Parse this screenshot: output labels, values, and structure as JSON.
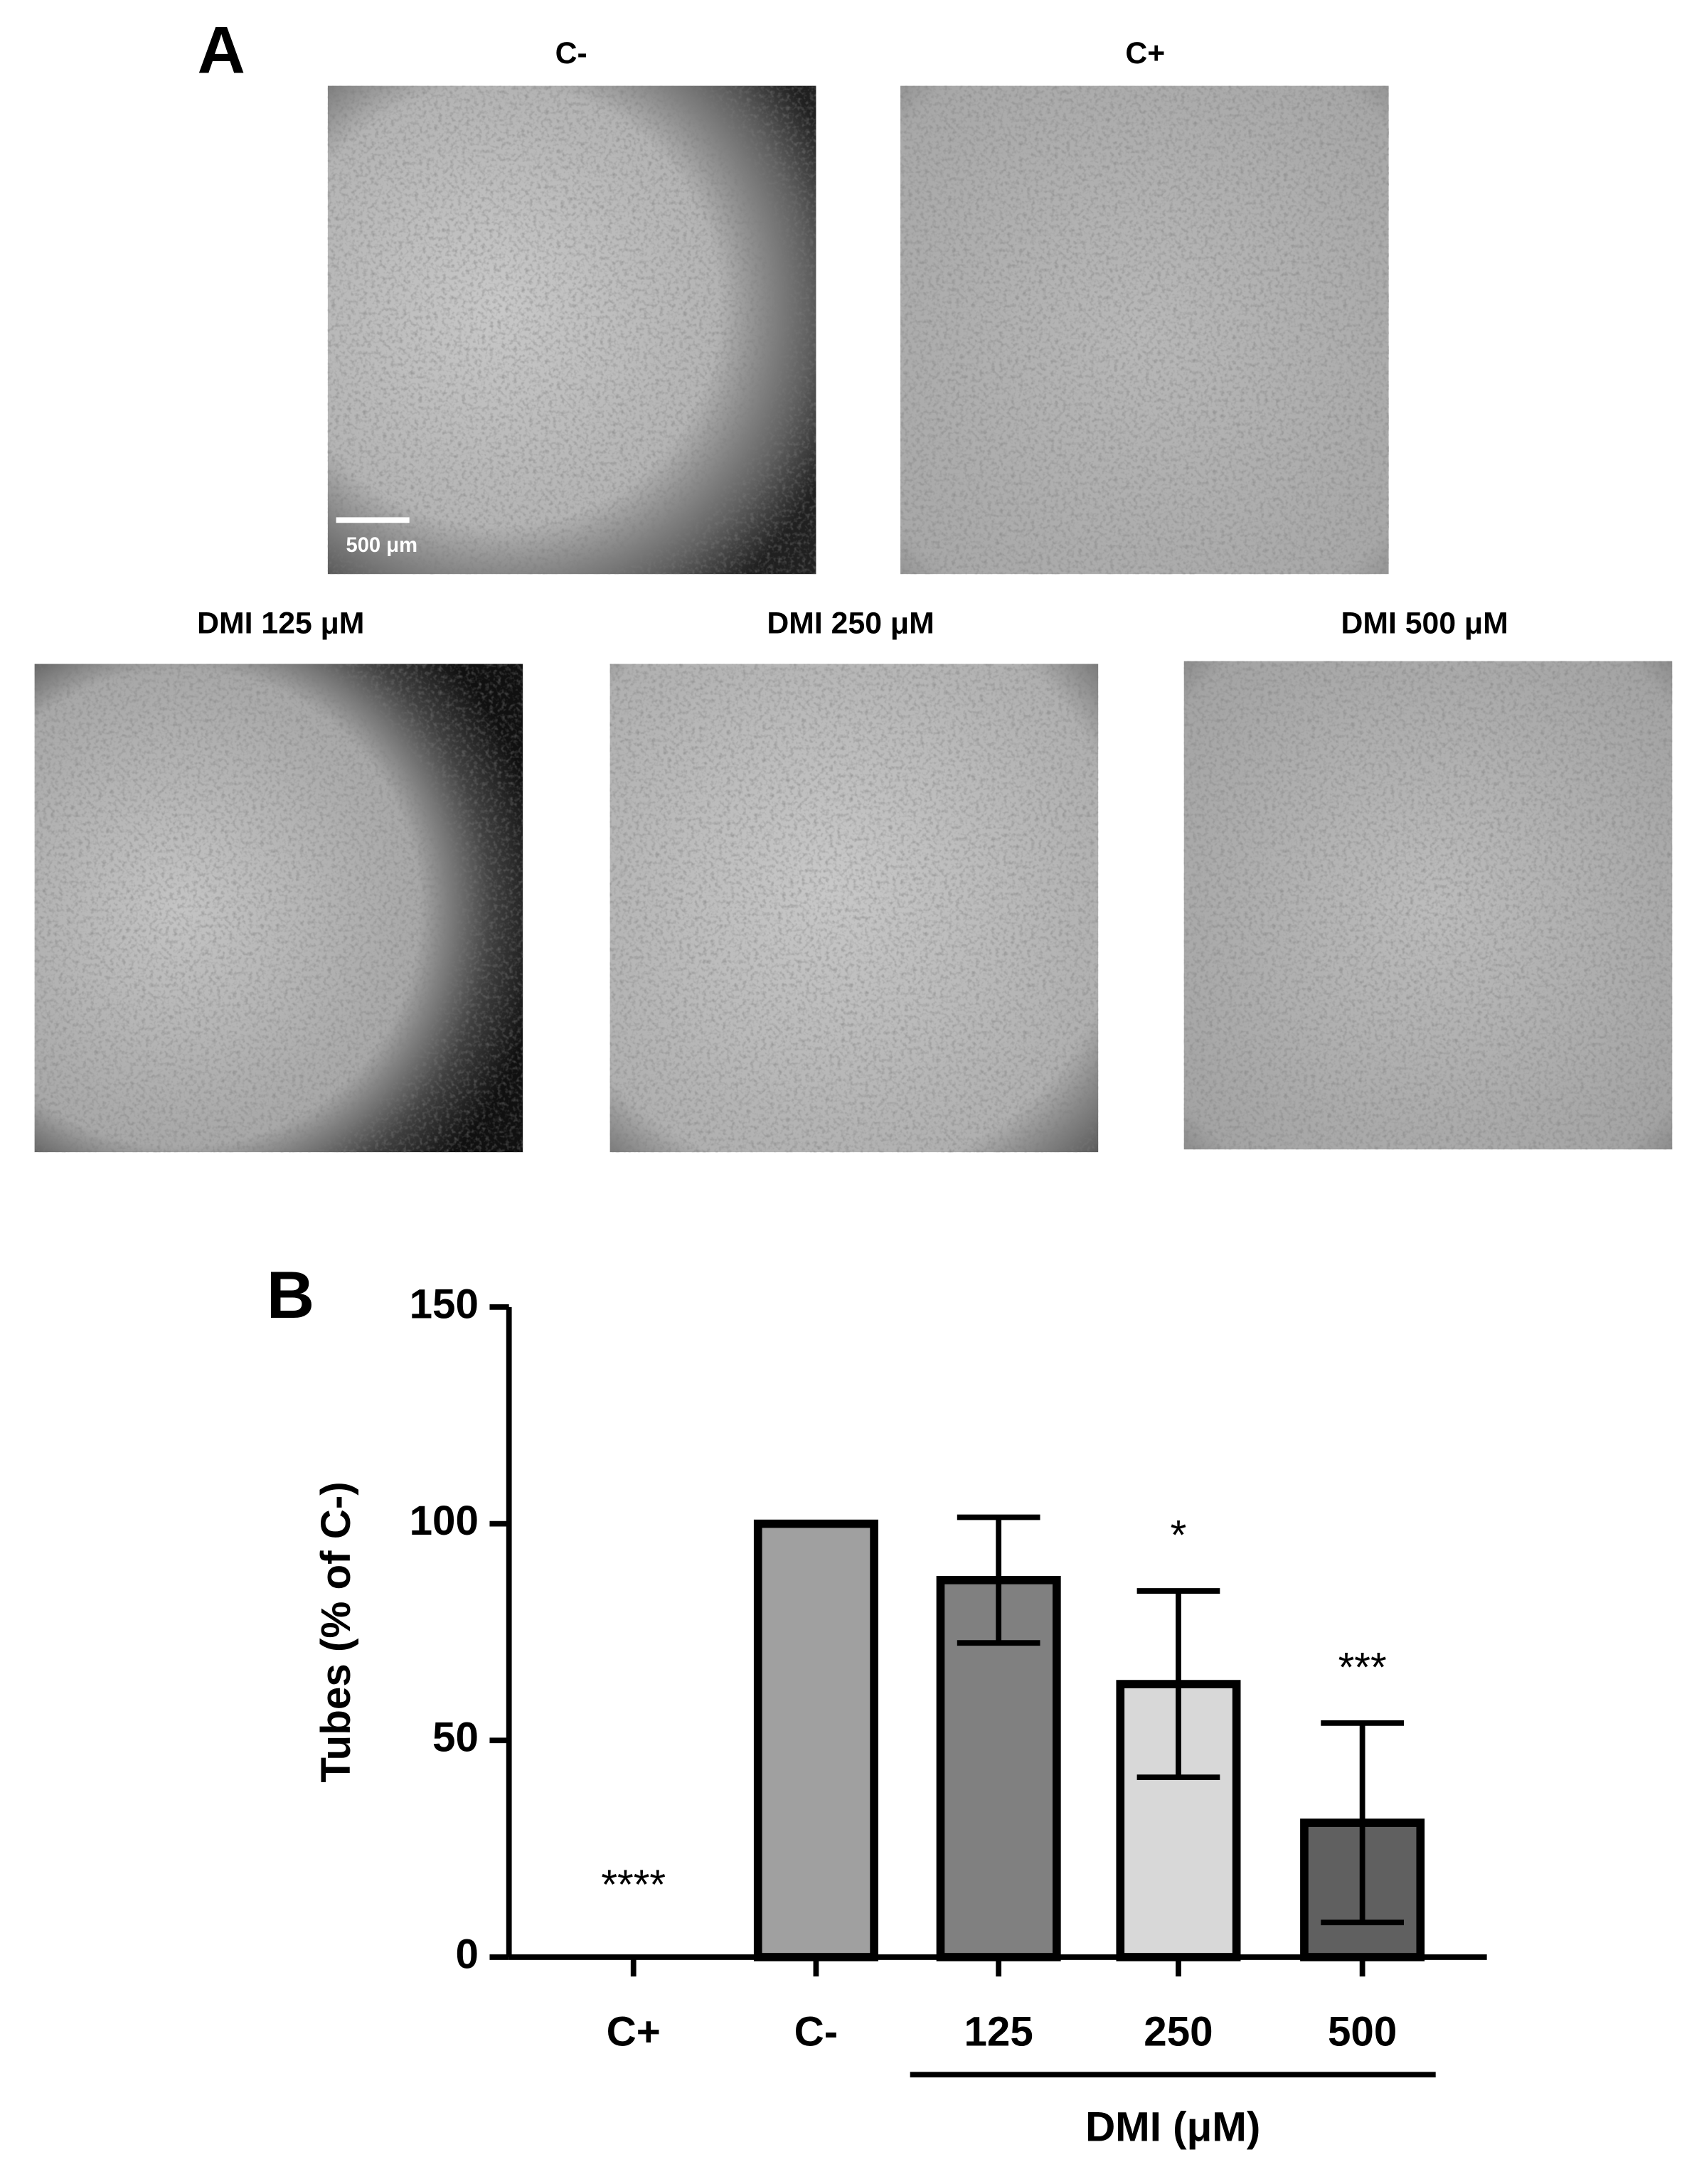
{
  "panel_a": {
    "label": "A",
    "images": [
      {
        "title": "C-"
      },
      {
        "title": "C+"
      },
      {
        "title": "DMI 125 μM"
      },
      {
        "title": "DMI 250 μM"
      },
      {
        "title": "DMI 500 μM"
      }
    ],
    "scale_bar": "500 μm"
  },
  "panel_b": {
    "label": "B"
  },
  "chart_data": {
    "type": "bar",
    "categories": [
      "C+",
      "C-",
      "125",
      "250",
      "500"
    ],
    "values": [
      0,
      100,
      87,
      63,
      31
    ],
    "errors": [
      null,
      null,
      14.5,
      21.5,
      23
    ],
    "colors": [
      "#ffffff",
      "#a0a0a0",
      "#808080",
      "#d8d8d8",
      "#606060"
    ],
    "annotations": [
      "****",
      null,
      null,
      "*",
      "***"
    ],
    "group_label": "DMI (μM)",
    "y_label": "Tubes (% of C-)",
    "ylim": [
      0,
      150
    ],
    "yticks": [
      0,
      50,
      100,
      150
    ],
    "grid": false
  }
}
